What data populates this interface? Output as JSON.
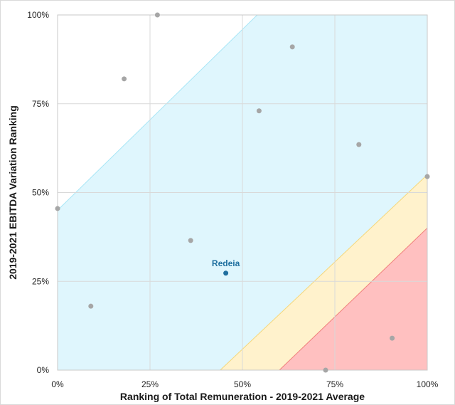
{
  "chart_data": {
    "type": "scatter",
    "title": "",
    "xlabel": "Ranking of Total Remuneration - 2019-2021 Average",
    "ylabel": "2019-2021 EBITDA Variation Ranking",
    "xlim": [
      0,
      100
    ],
    "ylim": [
      0,
      100
    ],
    "x_ticks": [
      "0%",
      "25%",
      "50%",
      "75%",
      "100%"
    ],
    "y_ticks": [
      "0%",
      "25%",
      "50%",
      "75%",
      "100%"
    ],
    "grid": true,
    "legend": "none",
    "points": [
      {
        "x": 0,
        "y": 45.5
      },
      {
        "x": 9,
        "y": 18
      },
      {
        "x": 18,
        "y": 82
      },
      {
        "x": 27,
        "y": 100
      },
      {
        "x": 36,
        "y": 36.5
      },
      {
        "x": 54.5,
        "y": 73
      },
      {
        "x": 63.5,
        "y": 91
      },
      {
        "x": 72.5,
        "y": 0
      },
      {
        "x": 81.5,
        "y": 63.5
      },
      {
        "x": 90.5,
        "y": 9
      },
      {
        "x": 100,
        "y": 54.5
      }
    ],
    "highlight": {
      "label": "Redeia",
      "x": 45.5,
      "y": 27.3
    },
    "bands": [
      {
        "color": "#dff6fd",
        "border": "#a8e6f6",
        "polygon": [
          [
            0,
            45
          ],
          [
            54,
            100
          ],
          [
            100,
            100
          ],
          [
            100,
            54
          ],
          [
            44,
            0
          ],
          [
            0,
            0
          ]
        ]
      },
      {
        "color": "#fff2cc",
        "border": "#f5d77a",
        "polygon": [
          [
            44,
            0
          ],
          [
            100,
            55
          ],
          [
            100,
            40
          ],
          [
            60,
            0
          ]
        ]
      },
      {
        "color": "#ffc0c0",
        "border": "#f08080",
        "polygon": [
          [
            60,
            0
          ],
          [
            100,
            40
          ],
          [
            100,
            0
          ]
        ]
      }
    ],
    "colors": {
      "point": "#a6a6a6",
      "highlight": "#1f6f9f",
      "grid": "#d9d9d9"
    }
  }
}
